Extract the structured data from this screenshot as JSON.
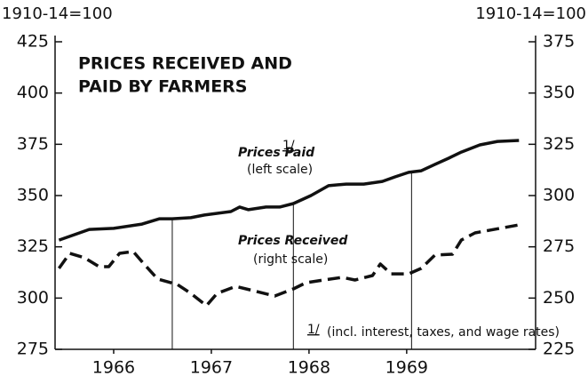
{
  "chart_data": {
    "type": "line",
    "title": [
      "PRICES RECEIVED AND",
      "PAID BY FARMERS"
    ],
    "left_unit": "1910-14=100",
    "right_unit": "1910-14=100",
    "xlim": [
      1965.4,
      1970.32
    ],
    "xticks": [
      1966,
      1967,
      1968,
      1969
    ],
    "ylim": [
      275,
      425
    ],
    "yticks": [
      275,
      300,
      325,
      350,
      375,
      400,
      425
    ],
    "y2lim": [
      225,
      375
    ],
    "y2ticks": [
      225,
      250,
      275,
      300,
      325,
      350,
      375
    ],
    "vlines": [
      1966.6,
      1967.84,
      1969.05
    ],
    "series": [
      {
        "name": "Prices Paid",
        "note": "(left scale)",
        "footnote_mark": "1/",
        "color": "#111",
        "dashed": false,
        "x": [
          1965.44,
          1965.75,
          1966.0,
          1966.29,
          1966.47,
          1966.6,
          1966.79,
          1966.93,
          1967.2,
          1967.29,
          1967.38,
          1967.56,
          1967.7,
          1967.84,
          1968.02,
          1968.2,
          1968.38,
          1968.56,
          1968.75,
          1968.88,
          1969.02,
          1969.15,
          1969.29,
          1969.43,
          1969.56,
          1969.75,
          1969.93,
          1970.15
        ],
        "values": [
          328.3,
          333.5,
          334.0,
          336.1,
          338.7,
          338.7,
          339.2,
          340.5,
          342.2,
          344.4,
          343.1,
          344.4,
          344.4,
          346.1,
          350.0,
          354.8,
          355.6,
          355.6,
          356.9,
          359.1,
          361.3,
          362.1,
          365.2,
          368.2,
          371.2,
          374.7,
          376.4,
          376.9
        ]
      },
      {
        "name": "Prices Received",
        "note": "(right scale)",
        "color": "#111",
        "dashed": true,
        "axis": "y2",
        "x": [
          1965.44,
          1965.55,
          1965.7,
          1965.85,
          1965.95,
          1966.06,
          1966.2,
          1966.31,
          1966.45,
          1966.65,
          1966.79,
          1966.95,
          1967.06,
          1967.25,
          1967.43,
          1967.65,
          1967.84,
          1967.97,
          1968.15,
          1968.34,
          1968.47,
          1968.65,
          1968.73,
          1968.84,
          1969.02,
          1969.15,
          1969.29,
          1969.47,
          1969.56,
          1969.7,
          1970.15
        ],
        "values": [
          264.5,
          271.8,
          269.7,
          265.3,
          265.3,
          271.8,
          272.7,
          266.6,
          259.3,
          256.7,
          252.3,
          246.3,
          252.3,
          255.7,
          253.6,
          251.0,
          254.5,
          257.5,
          258.8,
          260.1,
          258.8,
          261.0,
          266.6,
          261.8,
          261.8,
          264.5,
          271.0,
          271.4,
          278.3,
          281.8,
          285.7
        ]
      }
    ],
    "footnote": {
      "mark": "1/",
      "text": "(incl. interest, taxes, and wage rates)"
    }
  }
}
